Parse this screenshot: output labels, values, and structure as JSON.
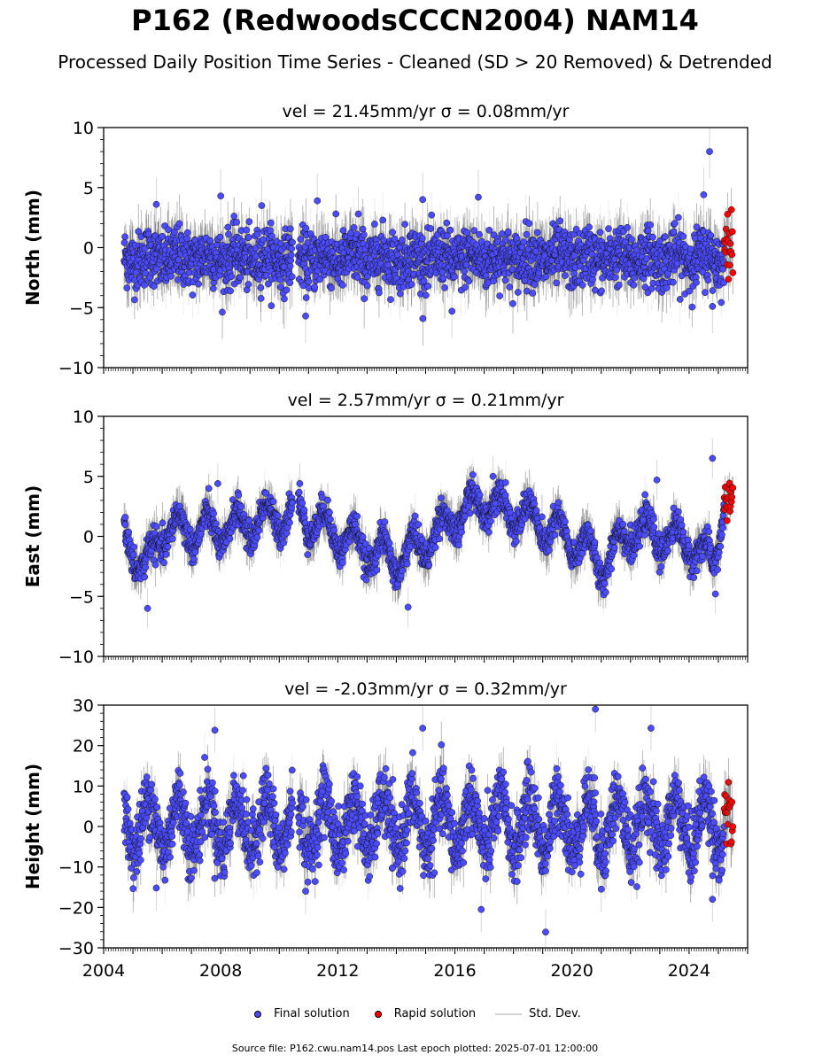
{
  "title": "P162 (RedwoodsCCCN2004) NAM14",
  "subtitle": "Processed Daily Position Time Series - Cleaned (SD > 20 Removed) & Detrended",
  "footer": "Source file: P162.cwu.nam14.pos  Last epoch plotted: 2025-07-01 12:00:00",
  "legend": {
    "final": "Final solution",
    "rapid": "Rapid solution",
    "std": "Std. Dev."
  },
  "colors": {
    "final": "#4b4bff",
    "rapid": "#ff0000",
    "std": "#d3d3d3",
    "errbar_dense": "#555555"
  },
  "chart_data": [
    {
      "type": "scatter",
      "panel": "north",
      "title": "vel = 21.45mm/yr   σ = 0.08mm/yr",
      "ylabel": "North (mm)",
      "xlim": [
        2004.0,
        2026.0
      ],
      "ylim": [
        -10,
        10
      ],
      "yticks": [
        -10,
        -5,
        0,
        5,
        10
      ],
      "ytick_labels": [
        "−10",
        "−5",
        "0",
        "5",
        "10"
      ],
      "series": [
        {
          "name": "Final solution",
          "x_start": 2004.7,
          "x_end": 2025.2,
          "mean": -0.9,
          "sd": 1.2,
          "seasonal_amp": 0.3,
          "err": 1.6,
          "outliers": [
            [
              2005.8,
              3.6
            ],
            [
              2008.0,
              4.3
            ],
            [
              2009.4,
              3.5
            ],
            [
              2010.9,
              -5.7
            ],
            [
              2011.3,
              3.9
            ],
            [
              2012.7,
              2.8
            ],
            [
              2014.9,
              4.0
            ],
            [
              2015.9,
              -5.3
            ],
            [
              2016.8,
              4.2
            ],
            [
              2024.5,
              4.4
            ],
            [
              2024.7,
              8.0
            ],
            [
              2024.8,
              -4.9
            ]
          ]
        },
        {
          "name": "Rapid solution",
          "x_start": 2025.2,
          "x_end": 2025.5,
          "mean": 0.4,
          "sd": 1.2
        }
      ]
    },
    {
      "type": "scatter",
      "panel": "east",
      "title": "vel = 2.57mm/yr   σ = 0.21mm/yr",
      "ylabel": "East (mm)",
      "xlim": [
        2004.0,
        2026.0
      ],
      "ylim": [
        -10,
        10
      ],
      "yticks": [
        -10,
        -5,
        0,
        5,
        10
      ],
      "ytick_labels": [
        "−10",
        "−5",
        "0",
        "5",
        "10"
      ],
      "series": [
        {
          "name": "Final solution",
          "x_start": 2004.7,
          "x_end": 2025.2,
          "sd": 0.6,
          "seasonal_amp": 1.4,
          "err": 1.2,
          "trend": [
            [
              2004.7,
              0.5
            ],
            [
              2005.4,
              -3.0
            ],
            [
              2006.0,
              0.5
            ],
            [
              2008.0,
              0.5
            ],
            [
              2010.5,
              2.0
            ],
            [
              2011.0,
              1.5
            ],
            [
              2012.5,
              -0.5
            ],
            [
              2014.0,
              -2.0
            ],
            [
              2015.0,
              -0.5
            ],
            [
              2016.0,
              1.5
            ],
            [
              2017.0,
              3.0
            ],
            [
              2018.5,
              1.5
            ],
            [
              2020.5,
              -1.0
            ],
            [
              2021.0,
              -2.5
            ],
            [
              2022.0,
              0.5
            ],
            [
              2024.0,
              -0.5
            ],
            [
              2024.8,
              -2.5
            ],
            [
              2025.2,
              3.0
            ]
          ],
          "outliers": [
            [
              2005.5,
              -6.0
            ],
            [
              2007.9,
              4.4
            ],
            [
              2010.7,
              4.4
            ],
            [
              2014.4,
              -5.9
            ],
            [
              2017.3,
              5.0
            ],
            [
              2022.9,
              4.7
            ],
            [
              2024.8,
              6.5
            ],
            [
              2024.9,
              -4.8
            ]
          ]
        },
        {
          "name": "Rapid solution",
          "x_start": 2025.2,
          "x_end": 2025.5,
          "mean": 3.3,
          "sd": 0.6
        }
      ]
    },
    {
      "type": "scatter",
      "panel": "height",
      "title": "vel = -2.03mm/yr   σ = 0.32mm/yr",
      "ylabel": "Height (mm)",
      "xlim": [
        2004.0,
        2026.0
      ],
      "ylim": [
        -30,
        30
      ],
      "yticks": [
        -30,
        -20,
        -10,
        0,
        10,
        20,
        30
      ],
      "ytick_labels": [
        "−30",
        "−20",
        "−10",
        "0",
        "10",
        "20",
        "30"
      ],
      "xticks": [
        2004,
        2008,
        2012,
        2016,
        2020,
        2024
      ],
      "series": [
        {
          "name": "Final solution",
          "x_start": 2004.7,
          "x_end": 2025.2,
          "mean": 0.5,
          "sd": 4.0,
          "seasonal_amp": 6.5,
          "err": 4.0,
          "outliers": [
            [
              2007.8,
              23.8
            ],
            [
              2005.8,
              -15.2
            ],
            [
              2010.9,
              -16.0
            ],
            [
              2014.9,
              24.3
            ],
            [
              2016.9,
              -20.5
            ],
            [
              2019.1,
              -26.1
            ],
            [
              2020.8,
              29.0
            ],
            [
              2021.0,
              -15.5
            ],
            [
              2022.7,
              24.3
            ],
            [
              2024.8,
              -18.0
            ]
          ]
        },
        {
          "name": "Rapid solution",
          "x_start": 2025.2,
          "x_end": 2025.5,
          "mean": 1.0,
          "sd": 4.0
        }
      ]
    }
  ]
}
